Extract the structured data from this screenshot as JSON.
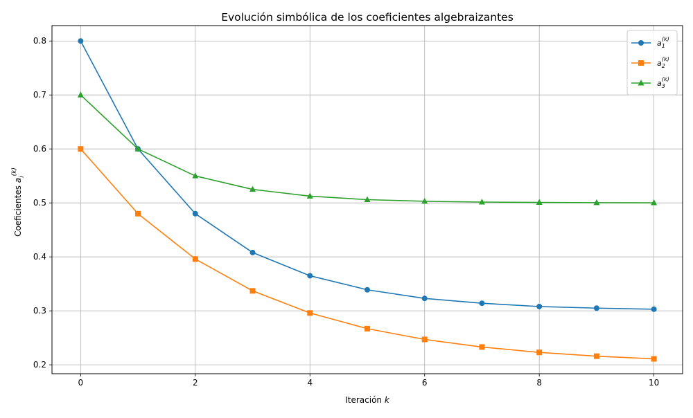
{
  "chart_data": {
    "type": "line",
    "title": "Evolución simbólica de los coeficientes algebraizantes",
    "xlabel": {
      "text": "Iteración ",
      "var": "k"
    },
    "ylabel": {
      "text": "Coeficientes ",
      "var": "a",
      "sub": "i",
      "sup": "(k)"
    },
    "x": [
      0,
      1,
      2,
      3,
      4,
      5,
      6,
      7,
      8,
      9,
      10
    ],
    "xlim": [
      -0.5,
      10.5
    ],
    "ylim": [
      0.1835,
      0.8285
    ],
    "xticks": [
      0,
      2,
      4,
      6,
      8,
      10
    ],
    "yticks": [
      0.2,
      0.3,
      0.4,
      0.5,
      0.6,
      0.7,
      0.8
    ],
    "grid": true,
    "legend_position": "top-right",
    "series": [
      {
        "name": "a_1^(k)",
        "legend": {
          "var": "a",
          "sub": "1",
          "sup": "(k)"
        },
        "color": "#1f77b4",
        "marker": "circle",
        "values": [
          0.8,
          0.6,
          0.48,
          0.408,
          0.365,
          0.339,
          0.323,
          0.314,
          0.308,
          0.305,
          0.303
        ]
      },
      {
        "name": "a_2^(k)",
        "legend": {
          "var": "a",
          "sub": "2",
          "sup": "(k)"
        },
        "color": "#ff7f0e",
        "marker": "square",
        "values": [
          0.6,
          0.48,
          0.396,
          0.337,
          0.296,
          0.267,
          0.247,
          0.233,
          0.223,
          0.216,
          0.211
        ]
      },
      {
        "name": "a_3^(k)",
        "legend": {
          "var": "a",
          "sub": "3",
          "sup": "(k)"
        },
        "color": "#2ca02c",
        "marker": "triangle",
        "values": [
          0.7,
          0.6,
          0.55,
          0.525,
          0.5125,
          0.506,
          0.503,
          0.5015,
          0.5008,
          0.5004,
          0.5002
        ]
      }
    ]
  }
}
